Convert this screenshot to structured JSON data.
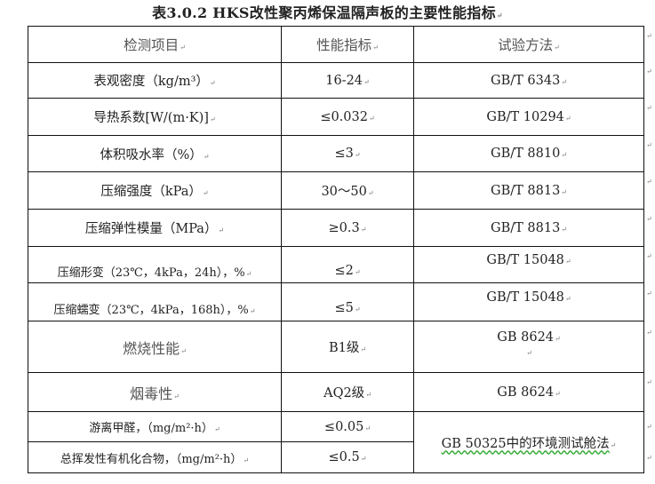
{
  "title": "表3.0.2 HKS改性聚丙烯保温隔声板的主要性能指标",
  "headers": [
    "检测项目",
    "性能指标",
    "试验方法"
  ],
  "rows": [
    {
      "item": "表观密度（kg/m³）",
      "value": "16-24",
      "method": "GB/T 6343"
    },
    {
      "item": "导热系数[W/(m·K)]",
      "value": "≤0.032",
      "method": "GB/T 10294"
    },
    {
      "item": "体积吸水率（%）",
      "value": "≤3",
      "method": "GB/T 8810"
    },
    {
      "item": "压缩强度（kPa）",
      "value": "30～50",
      "method": "GB/T 8813"
    },
    {
      "item": "压缩弹性模量（MPa）",
      "value": "≥0.3",
      "method": "GB/T 8813"
    },
    {
      "item": "压缩形变（23℃，4kPa，24h），%",
      "value": "≤2",
      "method": "GB/T 15048"
    },
    {
      "item": "压缩蠕变（23℃，4kPa，168h），%",
      "value": "≤5",
      "method": "GB/T 15048"
    },
    {
      "item": "燃烧性能",
      "value": "B1级",
      "method": "GB 8624"
    },
    {
      "item": "烟毒性",
      "value": "AQ2级",
      "method": "GB 8624"
    },
    {
      "item": "游离甲醛，（mg/m²·h）",
      "value": "≤0.05",
      "method": "GB 50325中的环境测试舱法"
    },
    {
      "item": "总挥发性有机化合物，（mg/m²·h）",
      "value": "≤0.5"
    }
  ]
}
